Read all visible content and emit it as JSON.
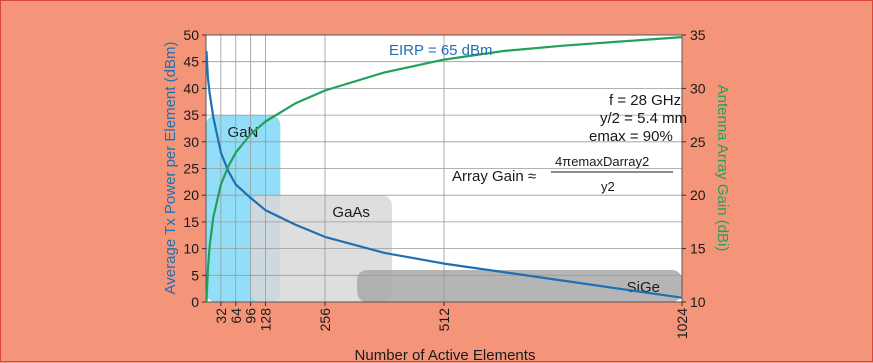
{
  "chart_data": {
    "type": "line",
    "xlabel": "Number of Active Elements",
    "ylabel_left": "Average Tx Power per Element (dBm)",
    "ylabel_right": "Antenna Array Gain (dBi)",
    "xlim": [
      0,
      1024
    ],
    "ylim_left": [
      0,
      50
    ],
    "ylim_right": [
      10,
      35
    ],
    "x_ticks": [
      32,
      64,
      96,
      128,
      256,
      512,
      1024
    ],
    "y_ticks_left": [
      0,
      5,
      10,
      15,
      20,
      25,
      30,
      35,
      40,
      45,
      50
    ],
    "y_ticks_right": [
      10,
      15,
      20,
      25,
      30,
      35
    ],
    "grid": true,
    "series": [
      {
        "axis": "left",
        "color": "#1f6fb5",
        "x": [
          1,
          4,
          8,
          16,
          32,
          48,
          64,
          96,
          128,
          192,
          256,
          384,
          512,
          640,
          768,
          896,
          1024
        ],
        "values": [
          47,
          42,
          39,
          34.5,
          28,
          24.5,
          22,
          19.5,
          17.2,
          14.5,
          12.2,
          9.2,
          7.2,
          5.6,
          4,
          2.4,
          0.8
        ]
      },
      {
        "axis": "right",
        "color": "#21a15a",
        "x": [
          1,
          4,
          8,
          16,
          32,
          48,
          64,
          96,
          128,
          192,
          256,
          384,
          512,
          640,
          768,
          896,
          1024
        ],
        "values": [
          10,
          13,
          15.3,
          18,
          21,
          22.7,
          24,
          25.7,
          26.9,
          28.6,
          29.8,
          31.5,
          32.7,
          33.5,
          34,
          34.4,
          34.8
        ]
      }
    ],
    "regions": [
      {
        "label": "GaN",
        "color": "#7fd8f7",
        "x": [
          0,
          160
        ],
        "y": [
          0,
          35
        ]
      },
      {
        "label": "GaAs",
        "color": "#d8d8d8",
        "x": [
          96,
          400
        ],
        "y": [
          0,
          20
        ]
      },
      {
        "label": "SiGe",
        "color": "#a8a8a8",
        "x": [
          325,
          1024
        ],
        "y": [
          0,
          6
        ]
      }
    ],
    "annotations": {
      "eirp": "EIRP = 65 dBm",
      "freq": "f = 28 GHz",
      "spacing": "y/2 = 5.4 mm",
      "efficiency": "emax = 90%",
      "formula_lhs": "Array Gain ≈",
      "formula_num": "4πemaxDarray2",
      "formula_den": "y2"
    }
  }
}
